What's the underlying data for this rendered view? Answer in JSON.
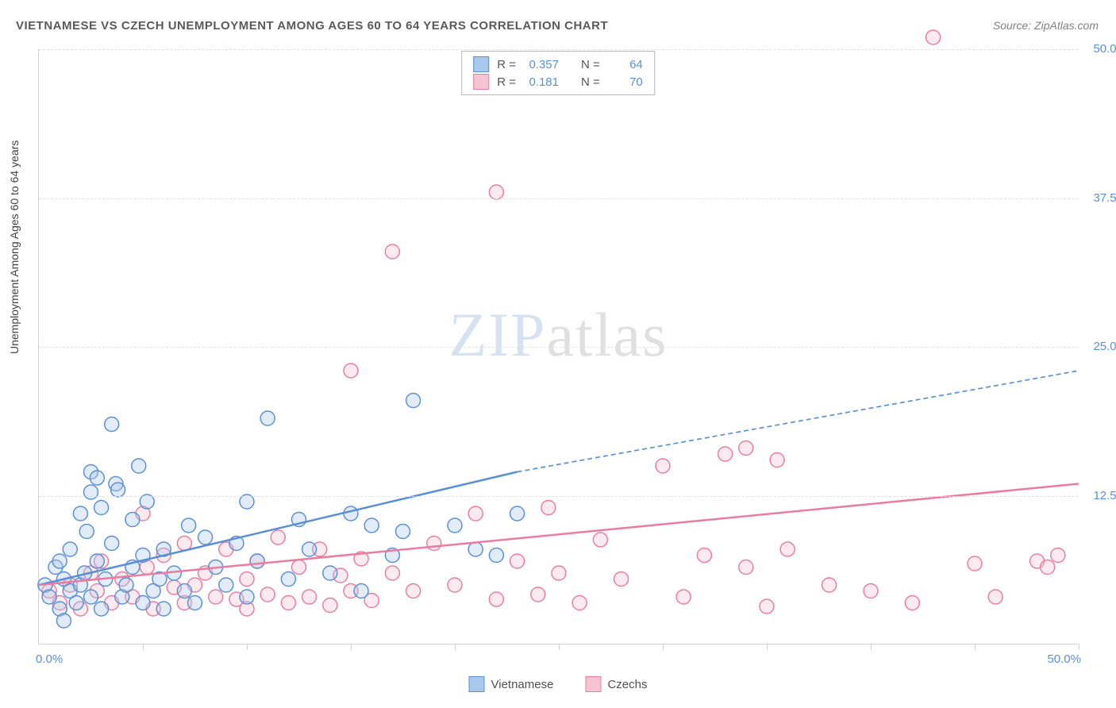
{
  "title": "VIETNAMESE VS CZECH UNEMPLOYMENT AMONG AGES 60 TO 64 YEARS CORRELATION CHART",
  "source_label": "Source:",
  "source_name": "ZipAtlas.com",
  "ylabel": "Unemployment Among Ages 60 to 64 years",
  "watermark_a": "ZIP",
  "watermark_b": "atlas",
  "chart": {
    "type": "scatter",
    "background_color": "#ffffff",
    "grid_color": "#e0e0e0",
    "axis_color": "#d0d0d0",
    "tick_color": "#5b8fd4",
    "xlim": [
      0,
      50
    ],
    "ylim": [
      0,
      50
    ],
    "ytick_step": 12.5,
    "xtick_step": 5,
    "ytick_labels": [
      "12.5%",
      "25.0%",
      "37.5%",
      "50.0%"
    ],
    "xtick_labels": {
      "0": "0.0%",
      "50": "50.0%"
    },
    "marker_radius": 9,
    "marker_fill_opacity": 0.35,
    "marker_stroke_width": 1.5,
    "line_width": 2.5,
    "dash_pattern": "6,4"
  },
  "series": [
    {
      "key": "vietnamese",
      "label": "Vietnamese",
      "color": "#5b8fd4",
      "fill": "#a8c8ec",
      "R": "0.357",
      "N": "64",
      "trend": {
        "x1": 0,
        "y1": 5,
        "x2": 23,
        "y2": 14.5,
        "ext_x2": 50,
        "ext_y2": 23
      },
      "points": [
        [
          0.3,
          5
        ],
        [
          0.5,
          4
        ],
        [
          0.8,
          6.5
        ],
        [
          1,
          3
        ],
        [
          1,
          7
        ],
        [
          1.2,
          5.5
        ],
        [
          1.2,
          2
        ],
        [
          1.5,
          8
        ],
        [
          1.5,
          4.5
        ],
        [
          1.8,
          3.5
        ],
        [
          2,
          11
        ],
        [
          2,
          5
        ],
        [
          2.2,
          6
        ],
        [
          2.3,
          9.5
        ],
        [
          2.5,
          4
        ],
        [
          2.5,
          12.8
        ],
        [
          2.5,
          14.5
        ],
        [
          2.8,
          14
        ],
        [
          2.8,
          7
        ],
        [
          3,
          3
        ],
        [
          3,
          11.5
        ],
        [
          3.2,
          5.5
        ],
        [
          3.5,
          18.5
        ],
        [
          3.5,
          8.5
        ],
        [
          3.7,
          13.5
        ],
        [
          3.8,
          13
        ],
        [
          4,
          4
        ],
        [
          4.2,
          5
        ],
        [
          4.5,
          10.5
        ],
        [
          4.5,
          6.5
        ],
        [
          4.8,
          15
        ],
        [
          5,
          3.5
        ],
        [
          5,
          7.5
        ],
        [
          5.2,
          12
        ],
        [
          5.5,
          4.5
        ],
        [
          5.8,
          5.5
        ],
        [
          6,
          8
        ],
        [
          6,
          3
        ],
        [
          6.5,
          6
        ],
        [
          7,
          4.5
        ],
        [
          7.2,
          10
        ],
        [
          7.5,
          3.5
        ],
        [
          8,
          9
        ],
        [
          8.5,
          6.5
        ],
        [
          9,
          5
        ],
        [
          9.5,
          8.5
        ],
        [
          10,
          12
        ],
        [
          10,
          4
        ],
        [
          10.5,
          7
        ],
        [
          11,
          19
        ],
        [
          12,
          5.5
        ],
        [
          12.5,
          10.5
        ],
        [
          13,
          8
        ],
        [
          14,
          6
        ],
        [
          15,
          11
        ],
        [
          15.5,
          4.5
        ],
        [
          16,
          10
        ],
        [
          17,
          7.5
        ],
        [
          17.5,
          9.5
        ],
        [
          18,
          20.5
        ],
        [
          20,
          10
        ],
        [
          21,
          8
        ],
        [
          22,
          7.5
        ],
        [
          23,
          11
        ]
      ]
    },
    {
      "key": "czechs",
      "label": "Czechs",
      "color": "#e97da0",
      "fill": "#f6c3d2",
      "R": "0.181",
      "N": "70",
      "trend": {
        "x1": 0,
        "y1": 5,
        "x2": 50,
        "y2": 13.5
      },
      "points": [
        [
          0.5,
          4.5
        ],
        [
          1,
          3.5
        ],
        [
          1.5,
          5
        ],
        [
          2,
          3
        ],
        [
          2.5,
          6
        ],
        [
          2.8,
          4.5
        ],
        [
          3,
          7
        ],
        [
          3.5,
          3.5
        ],
        [
          4,
          5.5
        ],
        [
          4.5,
          4
        ],
        [
          5,
          11
        ],
        [
          5.2,
          6.5
        ],
        [
          5.5,
          3
        ],
        [
          6,
          7.5
        ],
        [
          6.5,
          4.8
        ],
        [
          7,
          8.5
        ],
        [
          7,
          3.5
        ],
        [
          7.5,
          5
        ],
        [
          8,
          6
        ],
        [
          8.5,
          4
        ],
        [
          9,
          8
        ],
        [
          9.5,
          3.8
        ],
        [
          10,
          5.5
        ],
        [
          10,
          3
        ],
        [
          10.5,
          7
        ],
        [
          11,
          4.2
        ],
        [
          11.5,
          9
        ],
        [
          12,
          3.5
        ],
        [
          12.5,
          6.5
        ],
        [
          13,
          4
        ],
        [
          13.5,
          8
        ],
        [
          14,
          3.3
        ],
        [
          14.5,
          5.8
        ],
        [
          15,
          4.5
        ],
        [
          15,
          23
        ],
        [
          15.5,
          7.2
        ],
        [
          16,
          3.7
        ],
        [
          17,
          6
        ],
        [
          17,
          33
        ],
        [
          18,
          4.5
        ],
        [
          19,
          8.5
        ],
        [
          20,
          5
        ],
        [
          21,
          11
        ],
        [
          22,
          3.8
        ],
        [
          22,
          38
        ],
        [
          23,
          7
        ],
        [
          24,
          4.2
        ],
        [
          24.5,
          11.5
        ],
        [
          25,
          6
        ],
        [
          26,
          3.5
        ],
        [
          27,
          8.8
        ],
        [
          28,
          5.5
        ],
        [
          30,
          15
        ],
        [
          31,
          4
        ],
        [
          32,
          7.5
        ],
        [
          33,
          16
        ],
        [
          34,
          6.5
        ],
        [
          34,
          16.5
        ],
        [
          35,
          3.2
        ],
        [
          35.5,
          15.5
        ],
        [
          36,
          8
        ],
        [
          38,
          5
        ],
        [
          40,
          4.5
        ],
        [
          42,
          3.5
        ],
        [
          43,
          51
        ],
        [
          45,
          6.8
        ],
        [
          46,
          4
        ],
        [
          48,
          7
        ],
        [
          48.5,
          6.5
        ],
        [
          49,
          7.5
        ]
      ]
    }
  ],
  "legend_top": {
    "R_label": "R =",
    "N_label": "N ="
  }
}
